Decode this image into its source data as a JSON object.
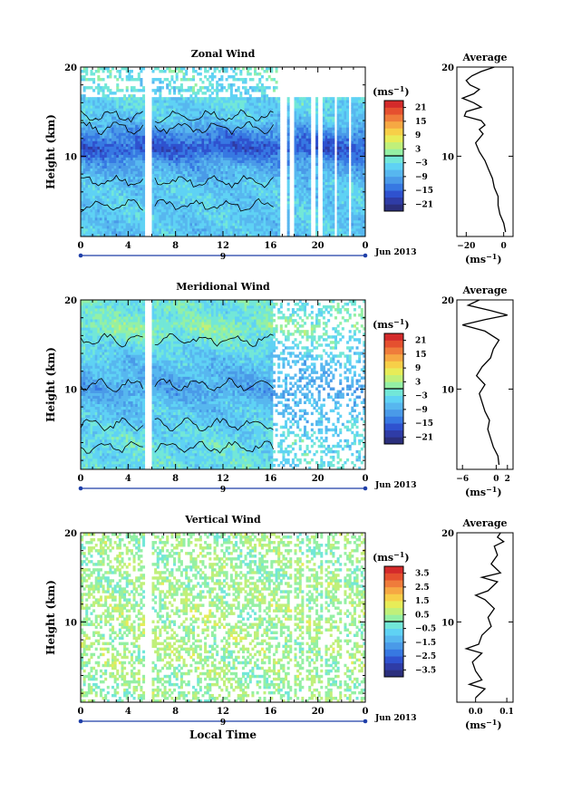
{
  "colors": {
    "scale": [
      "#2b2f7c",
      "#2f3ca6",
      "#2f52cf",
      "#3778e2",
      "#4a9ae8",
      "#57b7ef",
      "#5fd2f4",
      "#72e7d8",
      "#94f0a4",
      "#c0f07a",
      "#e7ec58",
      "#f7cf48",
      "#f6a843",
      "#ef7c3b",
      "#e5502f",
      "#d42a2a"
    ],
    "missing": "#ffffff",
    "contour": "#000000",
    "axis": "#000000",
    "date_axis": "#1f3fa8"
  },
  "chart_data": [
    {
      "type": "heatmap",
      "title": "Zonal Wind",
      "ylabel": "Height (km)",
      "y_ticks": [
        10,
        20
      ],
      "ylim": [
        1,
        20
      ],
      "x_ticks": [
        "0",
        "4",
        "8",
        "12",
        "16",
        "20",
        "0"
      ],
      "xlim": [
        0,
        24
      ],
      "date_marker": "9",
      "date_label": "Jun 2013",
      "colorbar": {
        "unit": "(ms",
        "unit_sup": "−1",
        "unit_close": ")",
        "labels": [
          "21",
          "15",
          "9",
          "3",
          "−3",
          "−9",
          "−15",
          "−21"
        ],
        "min": -24,
        "max": 24
      },
      "gaps": [
        [
          5.5,
          6.0
        ],
        [
          16.9,
          17.4
        ],
        [
          17.6,
          18.0
        ],
        [
          19.4,
          19.7
        ],
        [
          20.1,
          20.3
        ],
        [
          21.3,
          21.5
        ],
        [
          22.6,
          22.8
        ]
      ],
      "sparse_above_km": 16.5,
      "profile_at_h": [
        [
          1,
          -6
        ],
        [
          4,
          -5
        ],
        [
          7,
          -6
        ],
        [
          9,
          -9
        ],
        [
          10,
          -13
        ],
        [
          11,
          -16
        ],
        [
          12.5,
          -12
        ],
        [
          14,
          -6
        ],
        [
          16,
          -4
        ],
        [
          18,
          -3
        ],
        [
          20,
          -2
        ]
      ],
      "average": {
        "title": "Average",
        "xlabel": "(ms",
        "xlabel_sup": "−1",
        "xlabel_close": ")",
        "x_ticks": [
          "−20",
          "0"
        ],
        "xlim": [
          -25,
          5
        ],
        "y_ticks": [
          10,
          20
        ],
        "profile": [
          [
            1.5,
            1
          ],
          [
            2.5,
            0
          ],
          [
            3.5,
            -2
          ],
          [
            4.5,
            -3
          ],
          [
            5.5,
            -3
          ],
          [
            6.5,
            -5
          ],
          [
            7.5,
            -6
          ],
          [
            8.5,
            -8
          ],
          [
            9.5,
            -10
          ],
          [
            10.5,
            -13
          ],
          [
            11.5,
            -15
          ],
          [
            12.5,
            -11
          ],
          [
            13,
            -13
          ],
          [
            13.5,
            -10
          ],
          [
            14,
            -12
          ],
          [
            14.5,
            -21
          ],
          [
            15,
            -20
          ],
          [
            15.5,
            -12
          ],
          [
            16,
            -16
          ],
          [
            16.5,
            -22
          ],
          [
            17,
            -16
          ],
          [
            17.5,
            -13
          ],
          [
            18,
            -18
          ],
          [
            18.5,
            -20
          ],
          [
            19,
            -17
          ],
          [
            19.5,
            -12
          ],
          [
            20,
            -5
          ]
        ]
      }
    },
    {
      "type": "heatmap",
      "title": "Meridional Wind",
      "ylabel": "Height (km)",
      "y_ticks": [
        10,
        20
      ],
      "ylim": [
        1,
        20
      ],
      "x_ticks": [
        "0",
        "4",
        "8",
        "12",
        "16",
        "20",
        "0"
      ],
      "xlim": [
        0,
        24
      ],
      "date_marker": "9",
      "date_label": "Jun 2013",
      "colorbar": {
        "unit": "(ms",
        "unit_sup": "−1",
        "unit_close": ")",
        "labels": [
          "21",
          "15",
          "9",
          "3",
          "−3",
          "−9",
          "−15",
          "−21"
        ],
        "min": -24,
        "max": 24
      },
      "gaps": [
        [
          5.5,
          6.0
        ]
      ],
      "sparse_after_h": 16.2,
      "profile_at_h": [
        [
          1,
          -3
        ],
        [
          4,
          -3
        ],
        [
          6,
          -5
        ],
        [
          8,
          -6
        ],
        [
          10,
          -9
        ],
        [
          11,
          -8
        ],
        [
          13,
          -6
        ],
        [
          15,
          -3
        ],
        [
          17,
          1
        ],
        [
          18.5,
          -2
        ],
        [
          20,
          -2
        ]
      ],
      "average": {
        "title": "Average",
        "xlabel": "(ms",
        "xlabel_sup": "−1",
        "xlabel_close": ")",
        "x_ticks": [
          "−6",
          "0",
          "2"
        ],
        "xlim": [
          -7,
          3
        ],
        "y_ticks": [
          10,
          20
        ],
        "profile": [
          [
            1.5,
            0.5
          ],
          [
            2.5,
            0.3
          ],
          [
            3.5,
            -0.5
          ],
          [
            4.5,
            -1
          ],
          [
            5.5,
            -1.5
          ],
          [
            6.5,
            -1.2
          ],
          [
            7.5,
            -2
          ],
          [
            8.5,
            -2.5
          ],
          [
            9.5,
            -3
          ],
          [
            10.5,
            -2
          ],
          [
            11.5,
            -3.5
          ],
          [
            12.5,
            -2.5
          ],
          [
            13.5,
            -1
          ],
          [
            14.5,
            -0.5
          ],
          [
            15.5,
            0.5
          ],
          [
            16.5,
            -2
          ],
          [
            17.2,
            -6
          ],
          [
            17.8,
            -2
          ],
          [
            18.3,
            2
          ],
          [
            18.8,
            -1
          ],
          [
            19.4,
            -5
          ],
          [
            20,
            -3
          ]
        ]
      }
    },
    {
      "type": "heatmap",
      "title": "Vertical Wind",
      "ylabel": "Height (km)",
      "y_ticks": [
        10,
        20
      ],
      "ylim": [
        1,
        20
      ],
      "x_ticks": [
        "0",
        "4",
        "8",
        "12",
        "16",
        "20",
        "0"
      ],
      "xlim": [
        0,
        24
      ],
      "date_marker": "9",
      "date_label": "Jun 2013",
      "xlabel": "Local Time",
      "colorbar": {
        "unit": "(ms",
        "unit_sup": "−1",
        "unit_close": ")",
        "labels": [
          "3.5",
          "2.5",
          "1.5",
          "0.5",
          "−0.5",
          "−1.5",
          "−2.5",
          "−3.5"
        ],
        "min": -4,
        "max": 4
      },
      "gaps": [
        [
          5.5,
          6.0
        ],
        [
          17.8,
          18.0
        ],
        [
          18.8,
          19.0
        ],
        [
          20.5,
          20.7
        ],
        [
          22.0,
          22.2
        ]
      ],
      "sparse": true,
      "profile_at_h": [
        [
          1,
          0.3
        ],
        [
          5,
          0.4
        ],
        [
          10,
          0.5
        ],
        [
          15,
          0.3
        ],
        [
          20,
          0.4
        ]
      ],
      "average": {
        "title": "Average",
        "xlabel": "(ms",
        "xlabel_sup": "−1",
        "xlabel_close": ")",
        "x_ticks": [
          "0.0",
          "0.1"
        ],
        "xlim": [
          -0.06,
          0.12
        ],
        "y_ticks": [
          10,
          20
        ],
        "profile": [
          [
            1.5,
            0.0
          ],
          [
            2.5,
            0.03
          ],
          [
            3,
            -0.02
          ],
          [
            3.5,
            0.02
          ],
          [
            4.5,
            0.0
          ],
          [
            5.5,
            -0.01
          ],
          [
            6.5,
            0.02
          ],
          [
            7,
            -0.03
          ],
          [
            7.5,
            0.01
          ],
          [
            8.5,
            0.02
          ],
          [
            9.5,
            0.05
          ],
          [
            10.5,
            0.04
          ],
          [
            11.5,
            0.06
          ],
          [
            12.5,
            0.03
          ],
          [
            13,
            0.0
          ],
          [
            13.5,
            0.04
          ],
          [
            14.5,
            0.07
          ],
          [
            15,
            0.02
          ],
          [
            15.5,
            0.08
          ],
          [
            16.5,
            0.05
          ],
          [
            17.5,
            0.07
          ],
          [
            18.5,
            0.06
          ],
          [
            19,
            0.09
          ],
          [
            19.5,
            0.07
          ],
          [
            20,
            0.08
          ]
        ]
      }
    }
  ]
}
